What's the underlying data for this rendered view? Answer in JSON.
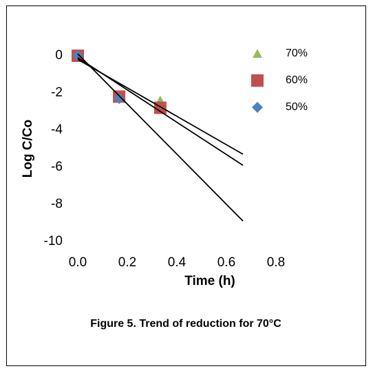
{
  "chart_data": {
    "type": "scatter",
    "xlabel": "Time (h)",
    "ylabel": "Log C/Co",
    "caption": "Figure 5. Trend of reduction for 70°C",
    "xlim": [
      0,
      0.8
    ],
    "xticks": [
      {
        "value": 0,
        "label": "0.0"
      },
      0.2,
      0.4,
      0.6,
      0.8
    ],
    "ylim": [
      -10,
      0
    ],
    "yticks": [
      0,
      -2,
      -4,
      -6,
      -8,
      -10
    ],
    "series": [
      {
        "name": "70%",
        "color": "#9bbb59",
        "marker": "triangle",
        "x": [
          0,
          0.167,
          0.333
        ],
        "values": [
          0,
          -2.2,
          -2.4
        ]
      },
      {
        "name": "60%",
        "color": "#c0504d",
        "marker": "square",
        "x": [
          0,
          0.167,
          0.333
        ],
        "values": [
          0,
          -2.2,
          -2.8
        ]
      },
      {
        "name": "50%",
        "color": "#4f81bd",
        "marker": "diamond",
        "x": [
          0,
          0.167
        ],
        "values": [
          0,
          -2.3
        ]
      }
    ],
    "trendlines": [
      {
        "color": "#000000",
        "x": [
          0,
          0.667
        ],
        "values": [
          -0.2,
          -5.3
        ]
      },
      {
        "color": "#000000",
        "x": [
          0,
          0.667
        ],
        "values": [
          -0.1,
          -5.9
        ]
      },
      {
        "color": "#000000",
        "x": [
          0,
          0.667
        ],
        "values": [
          0.1,
          -8.9
        ]
      }
    ]
  }
}
